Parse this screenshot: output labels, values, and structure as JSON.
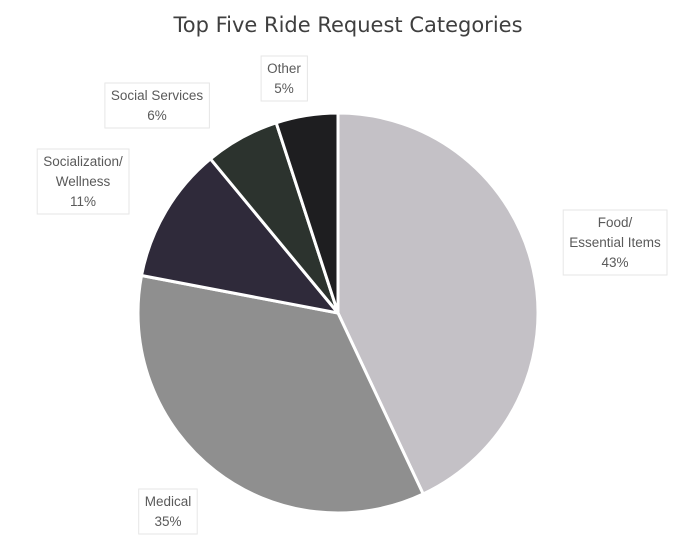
{
  "chart_data": {
    "type": "pie",
    "title": "Top Five Ride Request Categories",
    "categories": [
      "Food/ Essential Items",
      "Medical",
      "Socialization/ Wellness",
      "Social Services",
      "Other"
    ],
    "values": [
      43,
      35,
      11,
      6,
      5
    ],
    "slices": [
      {
        "label_lines": [
          "Food/",
          "Essential Items"
        ],
        "value": 43,
        "value_label": "43%",
        "color": "#c4c1c6"
      },
      {
        "label_lines": [
          "Medical"
        ],
        "value": 35,
        "value_label": "35%",
        "color": "#8f8f8f"
      },
      {
        "label_lines": [
          "Socialization/",
          "Wellness"
        ],
        "value": 11,
        "value_label": "11%",
        "color": "#2f2a3a"
      },
      {
        "label_lines": [
          "Social Services"
        ],
        "value": 6,
        "value_label": "6%",
        "color": "#2c332e"
      },
      {
        "label_lines": [
          "Other"
        ],
        "value": 5,
        "value_label": "5%",
        "color": "#1e1e20"
      }
    ],
    "start_at": "12 o'clock",
    "direction": "clockwise",
    "legend": "none",
    "data_labels": "outside",
    "slice_separator_color": "#ffffff"
  }
}
